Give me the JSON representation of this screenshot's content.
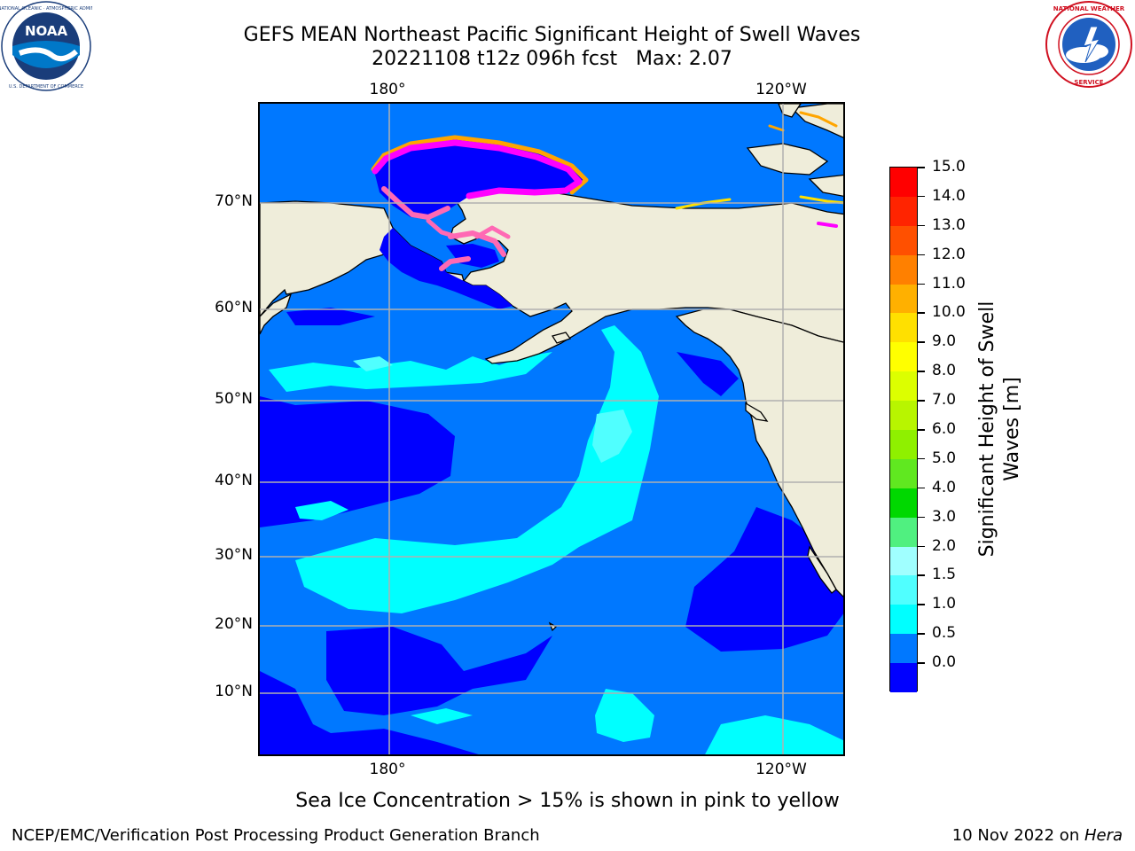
{
  "title": {
    "line1": "GEFS MEAN Northeast Pacific Significant Height of Swell Waves",
    "line2": "20221108 t12z 096h fcst   Max: 2.07"
  },
  "logos": {
    "left": {
      "icon": "noaa-logo",
      "text": "NOAA",
      "ring_text": "NATIONAL OCEANIC AND ATMOSPHERIC ADMINISTRATION · U.S. DEPARTMENT OF COMMERCE"
    },
    "right": {
      "icon": "nws-logo",
      "ring_text": "NATIONAL WEATHER SERVICE"
    }
  },
  "map": {
    "top_lon_labels": [
      "180°",
      "120°W"
    ],
    "bottom_lon_labels": [
      "180°",
      "120°W"
    ],
    "lat_labels": [
      "70°N",
      "60°N",
      "50°N",
      "40°N",
      "30°N",
      "20°N",
      "10°N"
    ],
    "land_color": "#efedda",
    "grid_color": "#b0b0b0",
    "ice_colors": [
      "#ff00ff",
      "#ff69b4",
      "#ffa500",
      "#ffff00"
    ]
  },
  "colorbar": {
    "title": "Significant Height of Swell Waves [m]",
    "title_line1": "Significant Height of Swell",
    "title_line2": "Waves [m]",
    "tick_labels": [
      "15.0",
      "14.0",
      "13.0",
      "12.0",
      "11.0",
      "10.0",
      "9.0",
      "8.0",
      "7.0",
      "6.0",
      "5.0",
      "4.0",
      "3.0",
      "2.0",
      "1.5",
      "1.0",
      "0.5",
      "0.0"
    ],
    "colors_top_to_bottom": [
      "#ff0000",
      "#ff2400",
      "#ff5000",
      "#ff8000",
      "#ffb000",
      "#ffe000",
      "#ffff00",
      "#dcff00",
      "#b8f500",
      "#8ff000",
      "#60e820",
      "#00d800",
      "#50f080",
      "#a0ffff",
      "#50ffff",
      "#00ffff",
      "#0078ff",
      "#0000ff"
    ]
  },
  "footer": {
    "ice_note": "Sea Ice Concentration > 15% is shown in pink to yellow",
    "left": "NCEP/EMC/Verification Post Processing Product Generation Branch",
    "right_prefix": "10 Nov 2022 on ",
    "right_machine": "Hera"
  }
}
